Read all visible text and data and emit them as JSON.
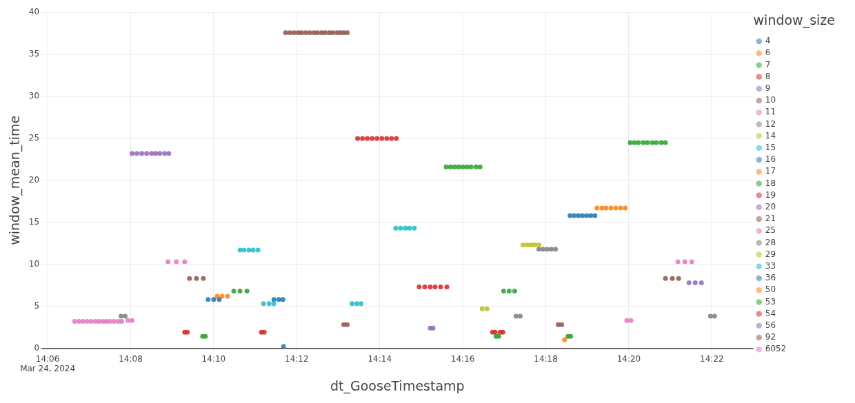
{
  "chart_data": {
    "type": "scatter",
    "xlabel": "dt_GooseTimestamp",
    "ylabel": "window_mean_time",
    "legend_title": "window_size",
    "legend": "right",
    "grid": true,
    "marker": "circle",
    "xlim": [
      "2024-03-24T14:05:51",
      "2024-03-24T14:23:00"
    ],
    "xticks": [
      {
        "value": "2024-03-24T14:06",
        "label": "14:06\nMar 24, 2024"
      },
      {
        "value": "2024-03-24T14:08",
        "label": "14:08"
      },
      {
        "value": "2024-03-24T14:10",
        "label": "14:10"
      },
      {
        "value": "2024-03-24T14:12",
        "label": "14:12"
      },
      {
        "value": "2024-03-24T14:14",
        "label": "14:14"
      },
      {
        "value": "2024-03-24T14:16",
        "label": "14:16"
      },
      {
        "value": "2024-03-24T14:18",
        "label": "14:18"
      },
      {
        "value": "2024-03-24T14:20",
        "label": "14:20"
      },
      {
        "value": "2024-03-24T14:22",
        "label": "14:22"
      }
    ],
    "ylim": [
      0,
      40
    ],
    "yticks": [
      0,
      5,
      10,
      15,
      20,
      25,
      30,
      35,
      40
    ],
    "series": [
      {
        "name": "4",
        "color": "#1f77b4",
        "x": [
          "2024-03-24T14:11:41"
        ],
        "values": [
          0.2
        ]
      },
      {
        "name": "6",
        "color": "#ff7f0e",
        "x": [
          "2024-03-24T14:18:27"
        ],
        "values": [
          1.0
        ]
      },
      {
        "name": "7",
        "color": "#2ca02c",
        "x": [
          "2024-03-24T14:09:44",
          "2024-03-24T14:09:48",
          "2024-03-24T14:16:48",
          "2024-03-24T14:16:52",
          "2024-03-24T14:18:32",
          "2024-03-24T14:18:36"
        ],
        "values": [
          1.4,
          1.4,
          1.4,
          1.4,
          1.4,
          1.4
        ]
      },
      {
        "name": "8",
        "color": "#d62728",
        "x": [
          "2024-03-24T14:09:18",
          "2024-03-24T14:09:22",
          "2024-03-24T14:11:09",
          "2024-03-24T14:11:13",
          "2024-03-24T14:16:43",
          "2024-03-24T14:16:47",
          "2024-03-24T14:16:54",
          "2024-03-24T14:16:58"
        ],
        "values": [
          1.9,
          1.9,
          1.9,
          1.9,
          1.9,
          1.9,
          1.9,
          1.9
        ]
      },
      {
        "name": "9",
        "color": "#9467bd",
        "x": [
          "2024-03-24T14:15:13",
          "2024-03-24T14:15:17"
        ],
        "values": [
          2.4,
          2.4
        ]
      },
      {
        "name": "10",
        "color": "#8c564b",
        "x": [
          "2024-03-24T14:13:08",
          "2024-03-24T14:13:13",
          "2024-03-24T14:18:18",
          "2024-03-24T14:18:23"
        ],
        "values": [
          2.8,
          2.8,
          2.8,
          2.8
        ]
      },
      {
        "name": "11",
        "color": "#e377c2",
        "x": [
          "2024-03-24T14:07:56",
          "2024-03-24T14:08:02",
          "2024-03-24T14:19:57",
          "2024-03-24T14:20:03"
        ],
        "values": [
          3.3,
          3.3,
          3.3,
          3.3
        ]
      },
      {
        "name": "12",
        "color": "#7f7f7f",
        "x": [
          "2024-03-24T14:07:46",
          "2024-03-24T14:07:52",
          "2024-03-24T14:17:17",
          "2024-03-24T14:17:23",
          "2024-03-24T14:21:58",
          "2024-03-24T14:22:04"
        ],
        "values": [
          3.8,
          3.8,
          3.8,
          3.8,
          3.8,
          3.8
        ]
      },
      {
        "name": "14",
        "color": "#bcbd22",
        "x": [
          "2024-03-24T14:16:28",
          "2024-03-24T14:16:35"
        ],
        "values": [
          4.7,
          4.7
        ]
      },
      {
        "name": "15",
        "color": "#17becf",
        "x": [
          "2024-03-24T14:11:12",
          "2024-03-24T14:11:20",
          "2024-03-24T14:11:27",
          "2024-03-24T14:13:20",
          "2024-03-24T14:13:27",
          "2024-03-24T14:13:33"
        ],
        "values": [
          5.3,
          5.3,
          5.3,
          5.3,
          5.3,
          5.3
        ]
      },
      {
        "name": "16",
        "color": "#1f77b4",
        "x": [
          "2024-03-24T14:09:52",
          "2024-03-24T14:10:00",
          "2024-03-24T14:10:08",
          "2024-03-24T14:11:27",
          "2024-03-24T14:11:34",
          "2024-03-24T14:11:40"
        ],
        "values": [
          5.8,
          5.8,
          5.8,
          5.8,
          5.8,
          5.8
        ]
      },
      {
        "name": "17",
        "color": "#ff7f0e",
        "x": [
          "2024-03-24T14:10:05",
          "2024-03-24T14:10:12",
          "2024-03-24T14:10:20"
        ],
        "values": [
          6.2,
          6.2,
          6.2
        ]
      },
      {
        "name": "18",
        "color": "#2ca02c",
        "x": [
          "2024-03-24T14:10:29",
          "2024-03-24T14:10:38",
          "2024-03-24T14:10:48",
          "2024-03-24T14:16:59",
          "2024-03-24T14:17:07",
          "2024-03-24T14:17:15"
        ],
        "values": [
          6.8,
          6.8,
          6.8,
          6.8,
          6.8,
          6.8
        ]
      },
      {
        "name": "19",
        "color": "#d62728",
        "x": [
          "2024-03-24T14:14:57",
          "2024-03-24T14:15:05",
          "2024-03-24T14:15:13",
          "2024-03-24T14:15:20",
          "2024-03-24T14:15:28",
          "2024-03-24T14:15:37"
        ],
        "values": [
          7.3,
          7.3,
          7.3,
          7.3,
          7.3,
          7.3
        ]
      },
      {
        "name": "20",
        "color": "#9467bd",
        "x": [
          "2024-03-24T14:21:27",
          "2024-03-24T14:21:36",
          "2024-03-24T14:21:45"
        ],
        "values": [
          7.8,
          7.8,
          7.8
        ]
      },
      {
        "name": "21",
        "color": "#8c564b",
        "x": [
          "2024-03-24T14:09:25",
          "2024-03-24T14:09:35",
          "2024-03-24T14:09:45",
          "2024-03-24T14:20:53",
          "2024-03-24T14:21:03",
          "2024-03-24T14:21:12"
        ],
        "values": [
          8.3,
          8.3,
          8.3,
          8.3,
          8.3,
          8.3
        ]
      },
      {
        "name": "25",
        "color": "#e377c2",
        "x": [
          "2024-03-24T14:08:54",
          "2024-03-24T14:09:06",
          "2024-03-24T14:09:18",
          "2024-03-24T14:21:11",
          "2024-03-24T14:21:21",
          "2024-03-24T14:21:31"
        ],
        "values": [
          10.3,
          10.3,
          10.3,
          10.3,
          10.3,
          10.3
        ]
      },
      {
        "name": "28",
        "color": "#7f7f7f",
        "x": [
          "2024-03-24T14:17:50",
          "2024-03-24T14:17:56",
          "2024-03-24T14:18:02",
          "2024-03-24T14:18:08",
          "2024-03-24T14:18:14"
        ],
        "values": [
          11.8,
          11.8,
          11.8,
          11.8,
          11.8
        ]
      },
      {
        "name": "29",
        "color": "#bcbd22",
        "x": [
          "2024-03-24T14:17:27",
          "2024-03-24T14:17:33",
          "2024-03-24T14:17:39",
          "2024-03-24T14:17:44",
          "2024-03-24T14:17:50"
        ],
        "values": [
          12.3,
          12.3,
          12.3,
          12.3,
          12.3
        ]
      },
      {
        "name": "33",
        "color": "#17becf",
        "x": [
          "2024-03-24T14:10:38",
          "2024-03-24T14:10:44",
          "2024-03-24T14:10:51",
          "2024-03-24T14:10:57",
          "2024-03-24T14:11:04",
          "2024-03-24T14:14:23",
          "2024-03-24T14:14:30",
          "2024-03-24T14:14:37",
          "2024-03-24T14:14:43",
          "2024-03-24T14:14:50"
        ],
        "values": [
          11.7,
          11.7,
          11.7,
          11.7,
          11.7,
          14.3,
          14.3,
          14.3,
          14.3,
          14.3
        ]
      },
      {
        "name": "36",
        "color": "#1f77b4",
        "x": [
          "2024-03-24T14:18:35",
          "2024-03-24T14:18:41",
          "2024-03-24T14:18:47",
          "2024-03-24T14:18:53",
          "2024-03-24T14:18:59",
          "2024-03-24T14:19:05",
          "2024-03-24T14:19:11"
        ],
        "values": [
          15.8,
          15.8,
          15.8,
          15.8,
          15.8,
          15.8,
          15.8
        ]
      },
      {
        "name": "50",
        "color": "#ff7f0e",
        "x": [
          "2024-03-24T14:19:14",
          "2024-03-24T14:19:21",
          "2024-03-24T14:19:27",
          "2024-03-24T14:19:34",
          "2024-03-24T14:19:41",
          "2024-03-24T14:19:48",
          "2024-03-24T14:19:55"
        ],
        "values": [
          16.7,
          16.7,
          16.7,
          16.7,
          16.7,
          16.7,
          16.7
        ]
      },
      {
        "name": "53",
        "color": "#2ca02c",
        "x": [
          "2024-03-24T14:15:36",
          "2024-03-24T14:15:42",
          "2024-03-24T14:15:48",
          "2024-03-24T14:15:54",
          "2024-03-24T14:16:00",
          "2024-03-24T14:16:06",
          "2024-03-24T14:16:12",
          "2024-03-24T14:16:19",
          "2024-03-24T14:16:25",
          "2024-03-24T14:20:02",
          "2024-03-24T14:20:08",
          "2024-03-24T14:20:14",
          "2024-03-24T14:20:21",
          "2024-03-24T14:20:27",
          "2024-03-24T14:20:34",
          "2024-03-24T14:20:40",
          "2024-03-24T14:20:47",
          "2024-03-24T14:20:53"
        ],
        "values": [
          21.6,
          21.6,
          21.6,
          21.6,
          21.6,
          21.6,
          21.6,
          21.6,
          21.6,
          24.5,
          24.5,
          24.5,
          24.5,
          24.5,
          24.5,
          24.5,
          24.5,
          24.5
        ]
      },
      {
        "name": "54",
        "color": "#d62728",
        "x": [
          "2024-03-24T14:13:28",
          "2024-03-24T14:13:35",
          "2024-03-24T14:13:42",
          "2024-03-24T14:13:49",
          "2024-03-24T14:13:56",
          "2024-03-24T14:14:03",
          "2024-03-24T14:14:10",
          "2024-03-24T14:14:17",
          "2024-03-24T14:14:24"
        ],
        "values": [
          25.0,
          25.0,
          25.0,
          25.0,
          25.0,
          25.0,
          25.0,
          25.0,
          25.0
        ]
      },
      {
        "name": "56",
        "color": "#9467bd",
        "x": [
          "2024-03-24T14:08:02",
          "2024-03-24T14:08:09",
          "2024-03-24T14:08:16",
          "2024-03-24T14:08:23",
          "2024-03-24T14:08:30",
          "2024-03-24T14:08:36",
          "2024-03-24T14:08:42",
          "2024-03-24T14:08:49",
          "2024-03-24T14:08:55"
        ],
        "values": [
          23.2,
          23.2,
          23.2,
          23.2,
          23.2,
          23.2,
          23.2,
          23.2,
          23.2
        ]
      },
      {
        "name": "92",
        "color": "#8c564b",
        "x": [
          "2024-03-24T14:11:44",
          "2024-03-24T14:11:50",
          "2024-03-24T14:11:56",
          "2024-03-24T14:12:02",
          "2024-03-24T14:12:07",
          "2024-03-24T14:12:13",
          "2024-03-24T14:12:19",
          "2024-03-24T14:12:25",
          "2024-03-24T14:12:30",
          "2024-03-24T14:12:36",
          "2024-03-24T14:12:41",
          "2024-03-24T14:12:47",
          "2024-03-24T14:12:52",
          "2024-03-24T14:12:58",
          "2024-03-24T14:13:03",
          "2024-03-24T14:13:08",
          "2024-03-24T14:13:13"
        ],
        "values": [
          37.6,
          37.6,
          37.6,
          37.6,
          37.6,
          37.6,
          37.6,
          37.6,
          37.6,
          37.6,
          37.6,
          37.6,
          37.6,
          37.6,
          37.6,
          37.6,
          37.6
        ]
      },
      {
        "name": "6052",
        "color": "#e377c2",
        "x": [
          "2024-03-24T14:06:39",
          "2024-03-24T14:06:45",
          "2024-03-24T14:06:51",
          "2024-03-24T14:06:57",
          "2024-03-24T14:07:03",
          "2024-03-24T14:07:09",
          "2024-03-24T14:07:14",
          "2024-03-24T14:07:20",
          "2024-03-24T14:07:25",
          "2024-03-24T14:07:30",
          "2024-03-24T14:07:36",
          "2024-03-24T14:07:42",
          "2024-03-24T14:07:47"
        ],
        "values": [
          3.2,
          3.2,
          3.2,
          3.2,
          3.2,
          3.2,
          3.2,
          3.2,
          3.2,
          3.2,
          3.2,
          3.2,
          3.2
        ]
      }
    ]
  }
}
